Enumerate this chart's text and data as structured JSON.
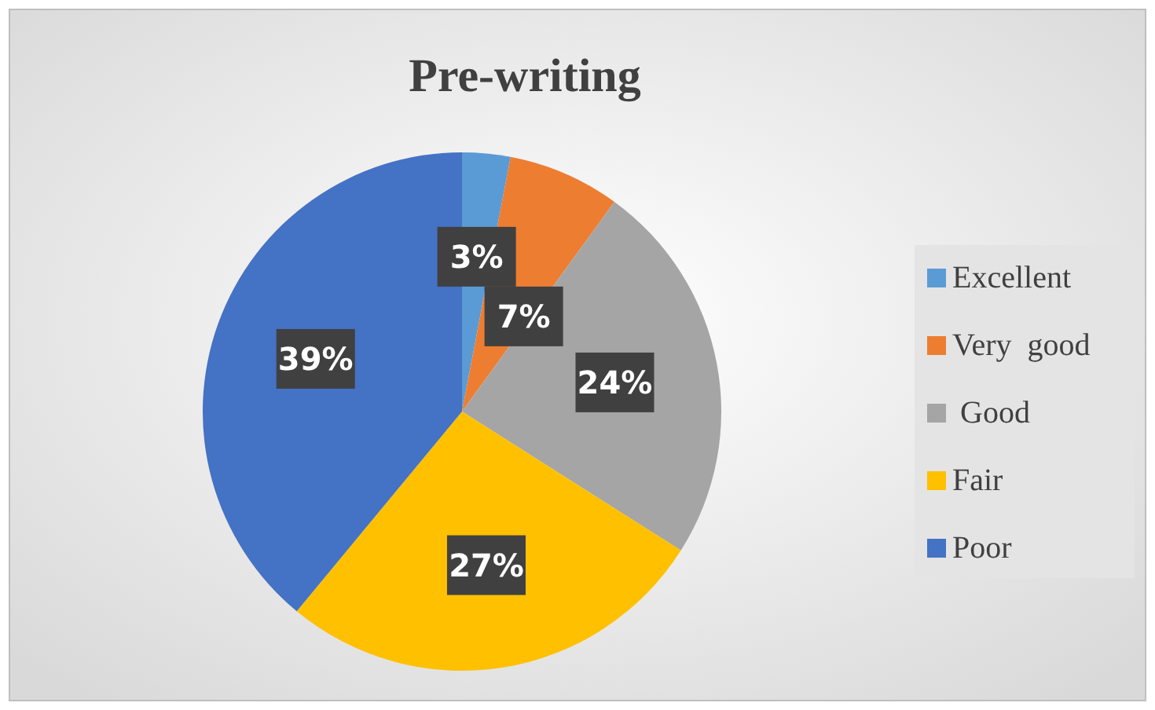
{
  "chart_data": {
    "type": "pie",
    "title": "Pre-writing",
    "categories": [
      "Excellent",
      "Very  good",
      " Good",
      "Fair",
      "Poor"
    ],
    "values": [
      3,
      7,
      24,
      27,
      39
    ],
    "colors": [
      "#5b9bd5",
      "#ed7d31",
      "#a5a5a5",
      "#ffc000",
      "#4472c4"
    ],
    "value_labels": [
      "3%",
      "7%",
      "24%",
      "27%",
      "39%"
    ],
    "legend": "right"
  }
}
